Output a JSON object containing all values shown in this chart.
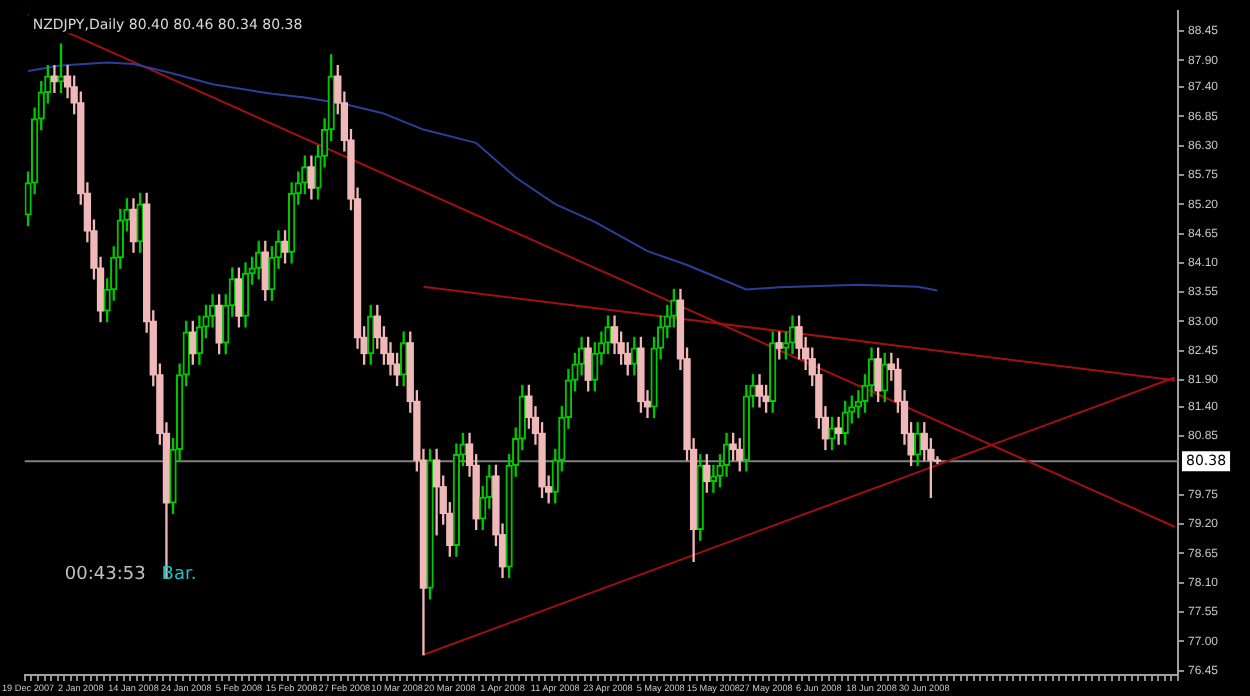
{
  "chart_data": {
    "type": "candlestick",
    "title": "NZDJPY,Daily 80.40 80.46 80.34 80.38",
    "categories": [
      "19 Dec 2007",
      null,
      null,
      null,
      null,
      null,
      null,
      null,
      "2 Jan 2008",
      null,
      null,
      null,
      null,
      null,
      null,
      null,
      "14 Jan 2008",
      null,
      null,
      null,
      null,
      null,
      null,
      null,
      "24 Jan 2008",
      null,
      null,
      null,
      null,
      null,
      null,
      null,
      "5 Feb 2008",
      null,
      null,
      null,
      null,
      null,
      null,
      null,
      "15 Feb 2008",
      null,
      null,
      null,
      null,
      null,
      null,
      null,
      "27 Feb 2008",
      null,
      null,
      null,
      null,
      null,
      null,
      null,
      "10 Mar 2008",
      null,
      null,
      null,
      null,
      null,
      null,
      null,
      "20 Mar 2008",
      null,
      null,
      null,
      null,
      null,
      null,
      null,
      "1 Apr 2008",
      null,
      null,
      null,
      null,
      null,
      null,
      null,
      "11 Apr 2008",
      null,
      null,
      null,
      null,
      null,
      null,
      null,
      "23 Apr 2008",
      null,
      null,
      null,
      null,
      null,
      null,
      null,
      "5 May 2008",
      null,
      null,
      null,
      null,
      null,
      null,
      null,
      "15 May 2008",
      null,
      null,
      null,
      null,
      null,
      null,
      null,
      "27 May 2008",
      null,
      null,
      null,
      null,
      null,
      null,
      null,
      "6 Jun 2008",
      null,
      null,
      null,
      null,
      null,
      null,
      null,
      "18 Jun 2008",
      null,
      null,
      null,
      null,
      null,
      null,
      null,
      "30 Jun 2008",
      null,
      null,
      null,
      null,
      null,
      null,
      null,
      null,
      null,
      null,
      null,
      null,
      null,
      null,
      null,
      null,
      null,
      null,
      null,
      null,
      null,
      null,
      null,
      null,
      null,
      null,
      null,
      null,
      null,
      null,
      null,
      null,
      null,
      null,
      null,
      null,
      null,
      null
    ],
    "ohlc": [
      [
        85.0,
        85.8,
        84.8,
        85.6
      ],
      [
        85.6,
        87.0,
        85.4,
        86.8
      ],
      [
        86.8,
        87.5,
        86.6,
        87.3
      ],
      [
        87.3,
        87.8,
        87.1,
        87.6
      ],
      [
        87.6,
        87.8,
        87.3,
        87.5
      ],
      [
        87.5,
        88.2,
        87.3,
        87.6
      ],
      [
        87.6,
        87.8,
        87.2,
        87.4
      ],
      [
        87.4,
        87.6,
        86.9,
        87.1
      ],
      [
        87.1,
        87.3,
        85.2,
        85.4
      ],
      [
        85.4,
        85.6,
        84.5,
        84.7
      ],
      [
        84.7,
        84.9,
        83.8,
        84.0
      ],
      [
        84.0,
        84.2,
        83.0,
        83.2
      ],
      [
        83.2,
        83.8,
        83.0,
        83.6
      ],
      [
        83.6,
        84.4,
        83.4,
        84.2
      ],
      [
        84.2,
        85.1,
        84.0,
        84.9
      ],
      [
        84.9,
        85.3,
        84.7,
        85.1
      ],
      [
        85.1,
        85.3,
        84.3,
        84.5
      ],
      [
        84.5,
        85.4,
        84.3,
        85.2
      ],
      [
        85.2,
        85.4,
        82.8,
        83.0
      ],
      [
        83.0,
        83.2,
        81.8,
        82.0
      ],
      [
        82.0,
        82.2,
        80.7,
        80.9
      ],
      [
        80.9,
        81.1,
        78.2,
        79.6
      ],
      [
        79.6,
        80.8,
        79.4,
        80.6
      ],
      [
        80.6,
        82.2,
        80.4,
        82.0
      ],
      [
        82.0,
        83.0,
        81.8,
        82.8
      ],
      [
        82.8,
        83.0,
        82.2,
        82.4
      ],
      [
        82.4,
        83.1,
        82.2,
        82.9
      ],
      [
        82.9,
        83.3,
        82.7,
        83.1
      ],
      [
        83.1,
        83.5,
        82.9,
        83.3
      ],
      [
        83.3,
        83.5,
        82.4,
        82.6
      ],
      [
        82.6,
        83.5,
        82.4,
        83.3
      ],
      [
        83.3,
        84.0,
        83.1,
        83.8
      ],
      [
        83.8,
        84.0,
        82.9,
        83.1
      ],
      [
        83.1,
        84.1,
        82.9,
        83.9
      ],
      [
        83.9,
        84.2,
        83.7,
        84.0
      ],
      [
        84.0,
        84.5,
        83.8,
        84.3
      ],
      [
        84.3,
        84.5,
        83.4,
        83.6
      ],
      [
        83.6,
        84.4,
        83.4,
        84.2
      ],
      [
        84.2,
        84.7,
        84.0,
        84.5
      ],
      [
        84.5,
        84.7,
        84.1,
        84.3
      ],
      [
        84.3,
        85.6,
        84.1,
        85.4
      ],
      [
        85.4,
        85.8,
        85.2,
        85.6
      ],
      [
        85.6,
        86.1,
        85.4,
        85.9
      ],
      [
        85.9,
        86.1,
        85.3,
        85.5
      ],
      [
        85.5,
        86.3,
        85.3,
        86.1
      ],
      [
        86.1,
        86.8,
        85.9,
        86.6
      ],
      [
        86.6,
        88.0,
        86.4,
        87.6
      ],
      [
        87.6,
        87.8,
        86.9,
        87.1
      ],
      [
        87.1,
        87.3,
        86.2,
        86.4
      ],
      [
        86.4,
        86.6,
        85.1,
        85.3
      ],
      [
        85.3,
        85.5,
        82.5,
        82.7
      ],
      [
        82.7,
        82.9,
        82.2,
        82.4
      ],
      [
        82.4,
        83.3,
        82.2,
        83.1
      ],
      [
        83.1,
        83.3,
        82.5,
        82.7
      ],
      [
        82.7,
        82.9,
        82.2,
        82.4
      ],
      [
        82.4,
        82.6,
        82.0,
        82.2
      ],
      [
        82.2,
        82.4,
        81.8,
        82.0
      ],
      [
        82.0,
        82.8,
        81.8,
        82.6
      ],
      [
        82.6,
        82.8,
        81.3,
        81.5
      ],
      [
        81.5,
        81.7,
        80.2,
        80.4
      ],
      [
        80.4,
        80.6,
        76.75,
        78.0
      ],
      [
        78.0,
        80.6,
        77.8,
        80.4
      ],
      [
        80.4,
        80.6,
        79.0,
        79.9
      ],
      [
        79.9,
        80.1,
        79.2,
        79.4
      ],
      [
        79.4,
        79.6,
        78.6,
        78.8
      ],
      [
        78.8,
        80.7,
        78.6,
        80.5
      ],
      [
        80.5,
        80.9,
        80.3,
        80.7
      ],
      [
        80.7,
        80.9,
        80.1,
        80.3
      ],
      [
        80.3,
        80.5,
        79.1,
        79.3
      ],
      [
        79.3,
        79.9,
        79.1,
        79.7
      ],
      [
        79.7,
        80.3,
        79.5,
        80.1
      ],
      [
        80.1,
        80.3,
        78.8,
        79.0
      ],
      [
        79.0,
        79.2,
        78.2,
        78.4
      ],
      [
        78.4,
        80.5,
        78.2,
        80.3
      ],
      [
        80.3,
        81.0,
        80.1,
        80.8
      ],
      [
        80.8,
        81.8,
        80.6,
        81.6
      ],
      [
        81.6,
        81.8,
        81.0,
        81.2
      ],
      [
        81.2,
        81.4,
        80.7,
        80.9
      ],
      [
        80.9,
        81.1,
        79.7,
        79.9
      ],
      [
        79.9,
        80.1,
        79.6,
        79.8
      ],
      [
        79.8,
        80.6,
        79.6,
        80.4
      ],
      [
        80.4,
        81.4,
        80.2,
        81.2
      ],
      [
        81.2,
        82.1,
        81.0,
        81.9
      ],
      [
        81.9,
        82.4,
        81.7,
        82.2
      ],
      [
        82.2,
        82.7,
        82.0,
        82.5
      ],
      [
        82.5,
        82.7,
        81.7,
        81.9
      ],
      [
        81.9,
        82.6,
        81.7,
        82.4
      ],
      [
        82.4,
        82.8,
        82.2,
        82.6
      ],
      [
        82.6,
        83.1,
        82.4,
        82.9
      ],
      [
        82.9,
        83.1,
        82.4,
        82.6
      ],
      [
        82.6,
        82.8,
        82.2,
        82.4
      ],
      [
        82.4,
        82.6,
        82.0,
        82.2
      ],
      [
        82.2,
        82.7,
        82.0,
        82.5
      ],
      [
        82.5,
        82.7,
        81.3,
        81.5
      ],
      [
        81.5,
        81.7,
        81.2,
        81.4
      ],
      [
        81.4,
        82.7,
        81.2,
        82.5
      ],
      [
        82.5,
        83.1,
        82.3,
        82.9
      ],
      [
        82.9,
        83.3,
        82.7,
        83.1
      ],
      [
        83.1,
        83.6,
        82.9,
        83.4
      ],
      [
        83.4,
        83.6,
        82.1,
        82.3
      ],
      [
        82.3,
        82.5,
        80.4,
        80.6
      ],
      [
        80.6,
        80.8,
        78.5,
        79.1
      ],
      [
        79.1,
        80.5,
        78.9,
        80.3
      ],
      [
        80.3,
        80.5,
        79.8,
        80.0
      ],
      [
        80.0,
        80.3,
        79.8,
        80.1
      ],
      [
        80.1,
        80.5,
        79.9,
        80.3
      ],
      [
        80.3,
        80.9,
        80.1,
        80.7
      ],
      [
        80.7,
        80.9,
        80.4,
        80.6
      ],
      [
        80.6,
        80.8,
        80.2,
        80.4
      ],
      [
        80.4,
        81.8,
        80.2,
        81.6
      ],
      [
        81.6,
        82.0,
        81.4,
        81.8
      ],
      [
        81.8,
        82.0,
        81.4,
        81.6
      ],
      [
        81.6,
        81.8,
        81.3,
        81.5
      ],
      [
        81.5,
        82.8,
        81.3,
        82.6
      ],
      [
        82.6,
        82.8,
        82.3,
        82.5
      ],
      [
        82.5,
        82.8,
        82.3,
        82.6
      ],
      [
        82.6,
        83.1,
        82.4,
        82.9
      ],
      [
        82.9,
        83.1,
        82.3,
        82.5
      ],
      [
        82.5,
        82.7,
        82.1,
        82.3
      ],
      [
        82.3,
        82.5,
        81.8,
        82.0
      ],
      [
        82.0,
        82.2,
        81.0,
        81.2
      ],
      [
        81.2,
        81.4,
        80.6,
        80.8
      ],
      [
        80.8,
        81.2,
        80.6,
        81.0
      ],
      [
        81.0,
        81.2,
        80.7,
        80.9
      ],
      [
        80.9,
        81.5,
        80.7,
        81.3
      ],
      [
        81.3,
        81.6,
        81.1,
        81.4
      ],
      [
        81.4,
        81.7,
        81.2,
        81.5
      ],
      [
        81.5,
        82.0,
        81.3,
        81.8
      ],
      [
        81.8,
        82.5,
        81.6,
        82.3
      ],
      [
        82.3,
        82.5,
        81.5,
        81.7
      ],
      [
        81.7,
        82.4,
        81.5,
        82.2
      ],
      [
        82.2,
        82.4,
        81.9,
        82.1
      ],
      [
        82.1,
        82.3,
        81.3,
        81.5
      ],
      [
        81.5,
        81.7,
        80.7,
        80.9
      ],
      [
        80.9,
        81.1,
        80.3,
        80.5
      ],
      [
        80.5,
        81.1,
        80.3,
        80.9
      ],
      [
        80.9,
        81.1,
        80.4,
        80.6
      ],
      [
        80.6,
        80.8,
        79.7,
        80.4
      ],
      [
        80.4,
        80.46,
        80.34,
        80.38
      ],
      null,
      null,
      null,
      null,
      null,
      null,
      null,
      null,
      null,
      null,
      null,
      null,
      null,
      null,
      null,
      null,
      null,
      null,
      null,
      null,
      null,
      null,
      null,
      null,
      null,
      null,
      null,
      null,
      null,
      null,
      null,
      null,
      null,
      null,
      null,
      null
    ],
    "colors": [
      "#00c800",
      "#00c800",
      "#00c800",
      "#00c800",
      "#f0b8b8",
      "#00c800",
      "#f0b8b8",
      "#f0b8b8",
      "#f0b8b8",
      "#f0b8b8",
      "#f0b8b8",
      "#f0b8b8",
      "#00c800",
      "#00c800",
      "#00c800",
      "#00c800",
      "#f0b8b8",
      "#00c800",
      "#f0b8b8",
      "#f0b8b8",
      "#f0b8b8",
      "#f0b8b8",
      "#00c800",
      "#00c800",
      "#00c800",
      "#f0b8b8",
      "#00c800",
      "#00c800",
      "#00c800",
      "#f0b8b8",
      "#00c800",
      "#00c800",
      "#f0b8b8",
      "#00c800",
      "#00c800",
      "#00c800",
      "#f0b8b8",
      "#00c800",
      "#00c800",
      "#f0b8b8",
      "#00c800",
      "#00c800",
      "#00c800",
      "#f0b8b8",
      "#00c800",
      "#00c800",
      "#00c800",
      "#f0b8b8",
      "#f0b8b8",
      "#f0b8b8",
      "#f0b8b8",
      "#f0b8b8",
      "#00c800",
      "#f0b8b8",
      "#f0b8b8",
      "#f0b8b8",
      "#f0b8b8",
      "#00c800",
      "#f0b8b8",
      "#f0b8b8",
      "#f0b8b8",
      "#00c800",
      "#f0b8b8",
      "#f0b8b8",
      "#f0b8b8",
      "#00c800",
      "#00c800",
      "#f0b8b8",
      "#f0b8b8",
      "#00c800",
      "#00c800",
      "#f0b8b8",
      "#f0b8b8",
      "#00c800",
      "#00c800",
      "#00c800",
      "#f0b8b8",
      "#f0b8b8",
      "#f0b8b8",
      "#f0b8b8",
      "#00c800",
      "#00c800",
      "#00c800",
      "#00c800",
      "#00c800",
      "#f0b8b8",
      "#00c800",
      "#00c800",
      "#00c800",
      "#f0b8b8",
      "#f0b8b8",
      "#f0b8b8",
      "#00c800",
      "#f0b8b8",
      "#f0b8b8",
      "#00c800",
      "#00c800",
      "#00c800",
      "#00c800",
      "#f0b8b8",
      "#f0b8b8",
      "#f0b8b8",
      "#00c800",
      "#f0b8b8",
      "#00c800",
      "#00c800",
      "#00c800",
      "#f0b8b8",
      "#f0b8b8",
      "#00c800",
      "#00c800",
      "#f0b8b8",
      "#f0b8b8",
      "#00c800",
      "#f0b8b8",
      "#00c800",
      "#00c800",
      "#f0b8b8",
      "#f0b8b8",
      "#f0b8b8",
      "#f0b8b8",
      "#f0b8b8",
      "#00c800",
      "#f0b8b8",
      "#00c800",
      "#00c800",
      "#00c800",
      "#00c800",
      "#00c800",
      "#f0b8b8",
      "#00c800",
      "#f0b8b8",
      "#f0b8b8",
      "#f0b8b8",
      "#f0b8b8",
      "#00c800",
      "#f0b8b8",
      "#f0b8b8",
      "#f0b8b8",
      null,
      null,
      null,
      null,
      null,
      null,
      null,
      null,
      null,
      null,
      null,
      null,
      null,
      null,
      null,
      null,
      null,
      null,
      null,
      null,
      null,
      null,
      null,
      null,
      null,
      null,
      null,
      null,
      null,
      null,
      null,
      null,
      null,
      null,
      null,
      null
    ],
    "series": [
      {
        "type": "line",
        "color": "#2a3f9a",
        "values": [
          87.7,
          null,
          null,
          null,
          null,
          87.8,
          null,
          null,
          null,
          null,
          null,
          null,
          87.86,
          null,
          null,
          null,
          87.83,
          null,
          null,
          null,
          null,
          null,
          87.65,
          null,
          null,
          null,
          null,
          null,
          87.45,
          null,
          null,
          null,
          null,
          null,
          null,
          null,
          null,
          87.27,
          null,
          null,
          null,
          null,
          87.2,
          null,
          null,
          null,
          null,
          null,
          87.08,
          null,
          null,
          null,
          null,
          null,
          86.9,
          null,
          null,
          null,
          null,
          null,
          86.6,
          null,
          null,
          null,
          null,
          null,
          null,
          null,
          86.35,
          null,
          null,
          null,
          null,
          null,
          85.7,
          null,
          null,
          null,
          null,
          null,
          85.2,
          null,
          null,
          null,
          null,
          null,
          84.87,
          null,
          null,
          null,
          null,
          null,
          null,
          null,
          84.32,
          null,
          null,
          null,
          null,
          null,
          84.06,
          null,
          null,
          null,
          null,
          null,
          null,
          null,
          null,
          83.6,
          null,
          null,
          null,
          null,
          83.64,
          null,
          null,
          null,
          null,
          null,
          null,
          null,
          null,
          null,
          null,
          null,
          83.69,
          null,
          null,
          null,
          null,
          null,
          null,
          null,
          null,
          83.65,
          null,
          null,
          83.58,
          null,
          null,
          null,
          null,
          null,
          null,
          null,
          null,
          null,
          null,
          null,
          null,
          null,
          null,
          null,
          null,
          null,
          null,
          null,
          null,
          null,
          null,
          null,
          null,
          null,
          null,
          null,
          null,
          null,
          null,
          null,
          null,
          null,
          null,
          null,
          null
        ]
      },
      {
        "type": "line",
        "color": "#a01010",
        "values": [
          88.75,
          null,
          null,
          null,
          null,
          null,
          null,
          null,
          null,
          null,
          null,
          null,
          null,
          null,
          null,
          null,
          null,
          null,
          null,
          null,
          null,
          null,
          null,
          null,
          null,
          null,
          null,
          null,
          null,
          null,
          null,
          null,
          null,
          null,
          null,
          null,
          null,
          null,
          null,
          null,
          null,
          null,
          null,
          null,
          null,
          null,
          null,
          null,
          null,
          null,
          null,
          null,
          null,
          null,
          null,
          null,
          null,
          null,
          null,
          null,
          null,
          null,
          null,
          null,
          null,
          null,
          null,
          null,
          null,
          null,
          null,
          null,
          null,
          null,
          null,
          null,
          null,
          null,
          null,
          null,
          null,
          null,
          null,
          null,
          null,
          null,
          null,
          null,
          null,
          null,
          null,
          null,
          null,
          null,
          null,
          null,
          null,
          null,
          null,
          null,
          null,
          null,
          null,
          null,
          null,
          null,
          null,
          null,
          null,
          null,
          null,
          null,
          null,
          null,
          null,
          null,
          null,
          null,
          null,
          null,
          null,
          null,
          null,
          null,
          null,
          null,
          null,
          null,
          null,
          null,
          null,
          null,
          null,
          null,
          null,
          null,
          null,
          null,
          null,
          null,
          null,
          null,
          null,
          null,
          null,
          null,
          null,
          null,
          null,
          null,
          null,
          null,
          null,
          null,
          null,
          null,
          null,
          null,
          null,
          null,
          null,
          null,
          null,
          null,
          null,
          null,
          null,
          null,
          null,
          null,
          null,
          null,
          null,
          null,
          79.15
        ]
      },
      {
        "type": "line",
        "color": "#a01010",
        "values": [
          null,
          null,
          null,
          null,
          null,
          null,
          null,
          null,
          null,
          null,
          null,
          null,
          null,
          null,
          null,
          null,
          null,
          null,
          null,
          null,
          null,
          null,
          null,
          null,
          null,
          null,
          null,
          null,
          null,
          null,
          null,
          null,
          null,
          null,
          null,
          null,
          null,
          null,
          null,
          null,
          null,
          null,
          null,
          null,
          null,
          null,
          null,
          null,
          null,
          null,
          null,
          null,
          null,
          null,
          null,
          null,
          null,
          null,
          null,
          null,
          83.65,
          null,
          null,
          null,
          null,
          null,
          null,
          null,
          null,
          null,
          null,
          null,
          null,
          null,
          null,
          null,
          null,
          null,
          null,
          null,
          null,
          null,
          null,
          null,
          null,
          null,
          null,
          null,
          null,
          null,
          null,
          null,
          null,
          null,
          null,
          null,
          null,
          null,
          null,
          null,
          null,
          null,
          null,
          null,
          null,
          null,
          null,
          null,
          null,
          null,
          null,
          null,
          null,
          null,
          null,
          null,
          null,
          null,
          null,
          null,
          null,
          null,
          null,
          null,
          null,
          null,
          null,
          null,
          null,
          null,
          null,
          null,
          null,
          null,
          null,
          null,
          null,
          null,
          null,
          null,
          null,
          null,
          null,
          null,
          null,
          null,
          null,
          null,
          null,
          null,
          null,
          null,
          null,
          null,
          null,
          null,
          null,
          null,
          null,
          null,
          null,
          null,
          null,
          null,
          null,
          null,
          null,
          null,
          null,
          null,
          null,
          null,
          null,
          null,
          81.9
        ]
      },
      {
        "type": "line",
        "color": "#a01010",
        "values": [
          null,
          null,
          null,
          null,
          null,
          null,
          null,
          null,
          null,
          null,
          null,
          null,
          null,
          null,
          null,
          null,
          null,
          null,
          null,
          null,
          null,
          null,
          null,
          null,
          null,
          null,
          null,
          null,
          null,
          null,
          null,
          null,
          null,
          null,
          null,
          null,
          null,
          null,
          null,
          null,
          null,
          null,
          null,
          null,
          null,
          null,
          null,
          null,
          null,
          null,
          null,
          null,
          null,
          null,
          null,
          null,
          null,
          null,
          null,
          null,
          76.75,
          null,
          null,
          null,
          null,
          null,
          null,
          null,
          null,
          null,
          null,
          null,
          null,
          null,
          null,
          null,
          null,
          null,
          null,
          null,
          null,
          null,
          null,
          null,
          null,
          null,
          null,
          null,
          null,
          null,
          null,
          null,
          null,
          null,
          null,
          null,
          null,
          null,
          null,
          null,
          null,
          null,
          null,
          null,
          null,
          null,
          null,
          null,
          null,
          null,
          null,
          null,
          null,
          null,
          null,
          null,
          null,
          null,
          null,
          null,
          null,
          null,
          null,
          null,
          null,
          null,
          null,
          null,
          null,
          null,
          null,
          null,
          null,
          null,
          null,
          null,
          null,
          null,
          null,
          null,
          null,
          null,
          null,
          null,
          null,
          null,
          null,
          null,
          null,
          null,
          null,
          null,
          null,
          null,
          null,
          null,
          null,
          null,
          null,
          null,
          null,
          null,
          null,
          null,
          null,
          null,
          null,
          null,
          null,
          null,
          null,
          null,
          null,
          null,
          81.95
        ]
      }
    ],
    "ylim": [
      76.37,
      88.82
    ],
    "yticks": [
      88.45,
      {
        "value": 87.9,
        "label": "87.90"
      },
      {
        "value": 87.4,
        "label": "87.40"
      },
      86.85,
      {
        "value": 86.3,
        "label": "86.30"
      },
      85.75,
      {
        "value": 85.2,
        "label": "85.20"
      },
      84.65,
      {
        "value": 84.1,
        "label": "84.10"
      },
      83.55,
      {
        "value": 83.0,
        "label": "83.00"
      },
      82.45,
      {
        "value": 81.9,
        "label": "81.90"
      },
      {
        "value": 81.4,
        "label": "81.40"
      },
      80.85,
      79.75,
      {
        "value": 79.2,
        "label": "79.20"
      },
      78.65,
      {
        "value": 78.1,
        "label": "78.10"
      },
      77.55,
      {
        "value": 77.0,
        "label": "77.00"
      },
      76.45
    ],
    "ref_lines": [
      {
        "axis": "y",
        "value": 80.38,
        "label": "80.38",
        "color": "#808080"
      }
    ],
    "annotations": [
      "00:43:53",
      "Bar."
    ]
  }
}
